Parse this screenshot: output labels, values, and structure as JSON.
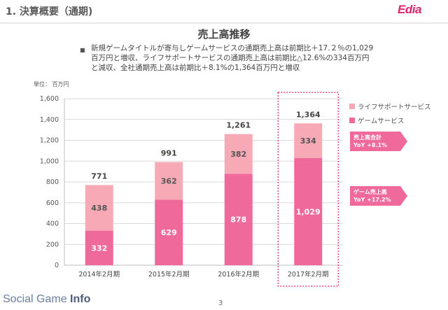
{
  "header": {
    "title": "1. 決算概要（通期)",
    "logo": "Edia"
  },
  "slide": {
    "title": "売上高推移",
    "bullet": "新規ゲームタイトルが寄与しゲームサービスの通期売上高は前期比＋17.２％の1,029百万円と増収、ライフサポートサービスの通期売上高は前期比△12.6%の334百万円と減収、全社通期売上高は前期比＋8.1%の1,364百万円と増収",
    "unit": "単位： 百万円"
  },
  "chart_data": {
    "type": "bar",
    "stacked": true,
    "categories": [
      "2014年2月期",
      "2015年2月期",
      "2016年2月期",
      "2017年2月期"
    ],
    "series": [
      {
        "name": "ゲームサービス",
        "values": [
          332,
          629,
          878,
          1029
        ],
        "color": "#f0699b"
      },
      {
        "name": "ライフサポートサービス",
        "values": [
          438,
          362,
          382,
          334
        ],
        "color": "#f7a9b6"
      }
    ],
    "totals": [
      "771",
      "991",
      "1,261",
      "1,364"
    ],
    "segment_labels": [
      [
        "332",
        "629",
        "878",
        "1,029"
      ],
      [
        "438",
        "362",
        "382",
        "334"
      ]
    ],
    "yticks": [
      "0",
      "200",
      "400",
      "600",
      "800",
      "1,000",
      "1,200",
      "1,400",
      "1,600"
    ],
    "ylim": [
      0,
      1600
    ],
    "grid": true,
    "legend": "right",
    "highlight_category": "2017年2月期",
    "callouts": [
      {
        "line1": "売上高合計",
        "line2": "YoY  +8.1%"
      },
      {
        "line1": "ゲーム売上高",
        "line2": "YoY  +17.2%"
      }
    ]
  },
  "footer": {
    "brand_light": "Social Game ",
    "brand_bold": "Info",
    "page": "3"
  }
}
